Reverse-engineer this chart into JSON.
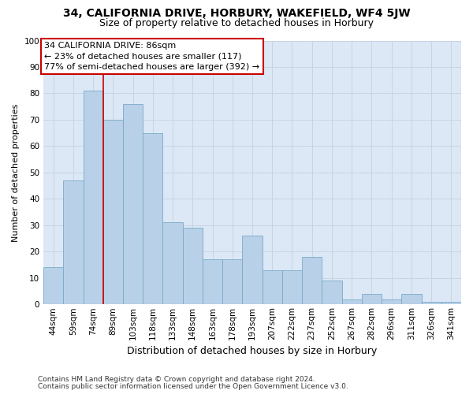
{
  "title1": "34, CALIFORNIA DRIVE, HORBURY, WAKEFIELD, WF4 5JW",
  "title2": "Size of property relative to detached houses in Horbury",
  "xlabel": "Distribution of detached houses by size in Horbury",
  "ylabel": "Number of detached properties",
  "categories": [
    "44sqm",
    "59sqm",
    "74sqm",
    "89sqm",
    "103sqm",
    "118sqm",
    "133sqm",
    "148sqm",
    "163sqm",
    "178sqm",
    "193sqm",
    "207sqm",
    "222sqm",
    "237sqm",
    "252sqm",
    "267sqm",
    "282sqm",
    "296sqm",
    "311sqm",
    "326sqm",
    "341sqm"
  ],
  "values": [
    14,
    47,
    81,
    70,
    76,
    65,
    31,
    29,
    17,
    17,
    26,
    13,
    13,
    18,
    9,
    2,
    4,
    2,
    4,
    1,
    1
  ],
  "bar_color": "#b8d0e8",
  "bar_edge_color": "#7aaac8",
  "vline_color": "#cc0000",
  "vline_x": 2.5,
  "annotation_line1": "34 CALIFORNIA DRIVE: 86sqm",
  "annotation_line2": "← 23% of detached houses are smaller (117)",
  "annotation_line3": "77% of semi-detached houses are larger (392) →",
  "annotation_box_facecolor": "#ffffff",
  "annotation_box_edgecolor": "#cc0000",
  "ylim": [
    0,
    100
  ],
  "yticks": [
    0,
    10,
    20,
    30,
    40,
    50,
    60,
    70,
    80,
    90,
    100
  ],
  "grid_color": "#c8d4e4",
  "ax_facecolor": "#dce8f5",
  "fig_facecolor": "#ffffff",
  "title1_fontsize": 10,
  "title2_fontsize": 9,
  "ylabel_fontsize": 8,
  "xlabel_fontsize": 9,
  "tick_fontsize": 7.5,
  "annotation_fontsize": 8,
  "footnote1": "Contains HM Land Registry data © Crown copyright and database right 2024.",
  "footnote2": "Contains public sector information licensed under the Open Government Licence v3.0.",
  "footnote_fontsize": 6.5
}
